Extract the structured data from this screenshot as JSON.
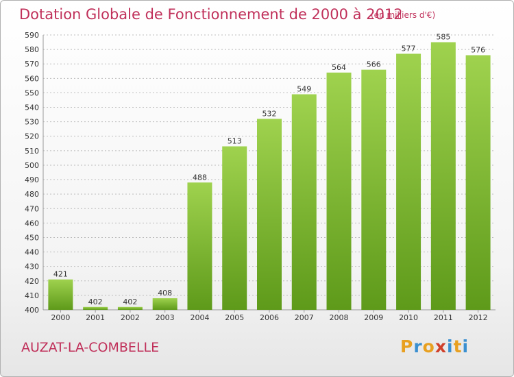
{
  "header": {
    "title": "Dotation Globale de Fonctionnement de 2000 à 2012",
    "subtitle": "(en milliers d'€)"
  },
  "footer": {
    "city": "AUZAT-LA-COMBELLE",
    "logo_text": "Proxiti",
    "logo_colors": [
      "#e8a020",
      "#3a8fd0",
      "#e8a020",
      "#d0402a",
      "#3a8fd0",
      "#e8a020",
      "#3a8fd0"
    ]
  },
  "colors": {
    "bar_top": "#9fd24e",
    "bar_bottom": "#5e9a1a",
    "text_accent": "#c0305a",
    "grid": "#bcbcbc"
  },
  "chart_data": {
    "type": "bar",
    "categories": [
      "2000",
      "2001",
      "2002",
      "2003",
      "2004",
      "2005",
      "2006",
      "2007",
      "2008",
      "2009",
      "2010",
      "2011",
      "2012"
    ],
    "values": [
      421,
      402,
      402,
      408,
      488,
      513,
      532,
      549,
      564,
      566,
      577,
      585,
      576
    ],
    "title": "Dotation Globale de Fonctionnement de 2000 à 2012",
    "subtitle": "(en milliers d'€)",
    "xlabel": "",
    "ylabel": "",
    "ylim": [
      400,
      590
    ],
    "ytick_step": 10,
    "grid": true,
    "data_labels": true
  }
}
